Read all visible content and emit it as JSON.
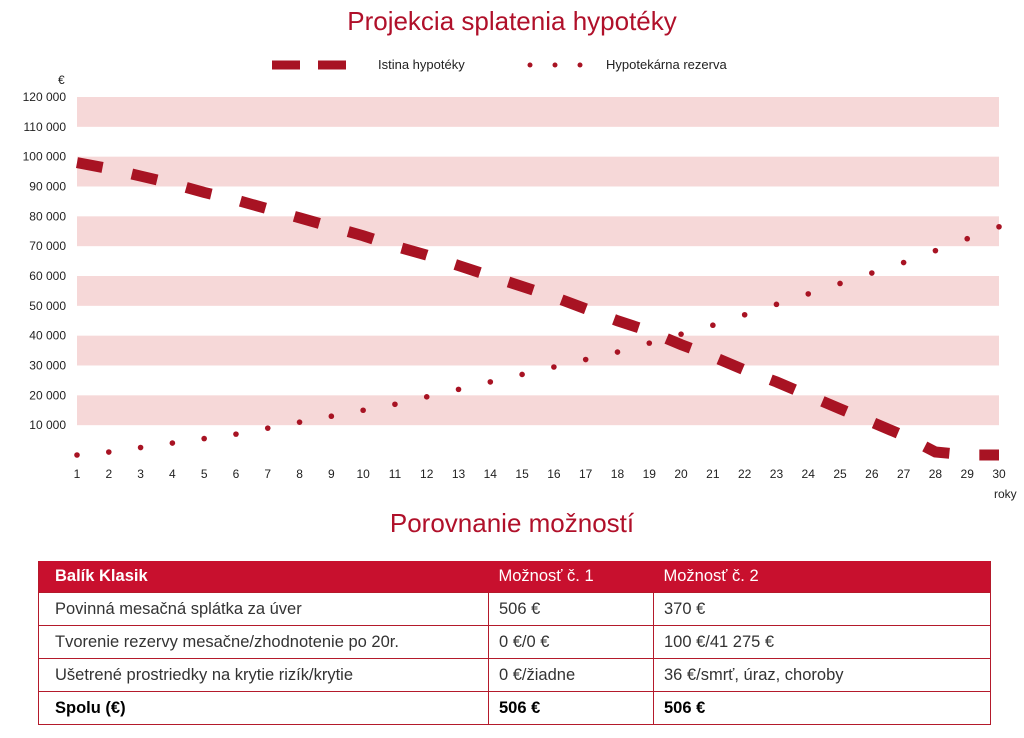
{
  "chart_data": {
    "type": "line",
    "title": "Projekcia splatenia hypotéky",
    "ylabel": "€",
    "xlabel": "roky",
    "ylim": [
      0,
      120000
    ],
    "yticks": [
      "10 000",
      "20 000",
      "30 000",
      "40 000",
      "50 000",
      "60 000",
      "70 000",
      "80 000",
      "90 000",
      "100 000",
      "110 000",
      "120 000"
    ],
    "ytick_values": [
      10000,
      20000,
      30000,
      40000,
      50000,
      60000,
      70000,
      80000,
      90000,
      100000,
      110000,
      120000
    ],
    "xticks": [
      "1",
      "2",
      "3",
      "4",
      "5",
      "6",
      "7",
      "8",
      "9",
      "10",
      "11",
      "12",
      "13",
      "14",
      "15",
      "16",
      "17",
      "18",
      "19",
      "20",
      "21",
      "22",
      "23",
      "24",
      "25",
      "26",
      "27",
      "28",
      "29",
      "30"
    ],
    "x": [
      1,
      2,
      3,
      4,
      5,
      6,
      7,
      8,
      9,
      10,
      11,
      12,
      13,
      14,
      15,
      16,
      17,
      18,
      19,
      20,
      21,
      22,
      23,
      24,
      25,
      26,
      27,
      28,
      29,
      30
    ],
    "background": "alternating horizontal bands",
    "legend_position": "top-center",
    "series": [
      {
        "name": "Istina hypotéky",
        "style": "dashed",
        "color": "#a81323",
        "values": [
          98000,
          96000,
          93500,
          91000,
          88000,
          85500,
          82500,
          79500,
          76500,
          73500,
          70000,
          67000,
          63500,
          60000,
          56500,
          53000,
          49000,
          45000,
          41500,
          37000,
          33000,
          28500,
          24500,
          20000,
          15500,
          11000,
          6500,
          1000,
          0,
          0
        ]
      },
      {
        "name": "Hypotekárna rezerva",
        "style": "dotted",
        "color": "#a81323",
        "values": [
          0,
          1000,
          2500,
          4000,
          5500,
          7000,
          9000,
          11000,
          13000,
          15000,
          17000,
          19500,
          22000,
          24500,
          27000,
          29500,
          32000,
          34500,
          37500,
          40500,
          43500,
          47000,
          50500,
          54000,
          57500,
          61000,
          64500,
          68500,
          72500,
          76500
        ]
      }
    ]
  },
  "table": {
    "title": "Porovnanie možností",
    "headers": [
      "Balík Klasik",
      "Možnosť č. 1",
      "Možnosť č. 2"
    ],
    "rows": [
      [
        "Povinná mesačná splátka za úver",
        "506 €",
        "370 €"
      ],
      [
        "Tvorenie rezervy mesačne/zhodnotenie po 20r.",
        "0 €/0 €",
        "100 €/41 275 €"
      ],
      [
        "Ušetrené prostriedky na krytie rizík/krytie",
        "0 €/žiadne",
        "36 €/smrť, úraz, choroby"
      ]
    ],
    "total": [
      "Spolu (€)",
      "506 €",
      "506 €"
    ]
  },
  "colors": {
    "accent": "#c8102e",
    "band": "#f6d8d8",
    "series": "#a81323"
  }
}
